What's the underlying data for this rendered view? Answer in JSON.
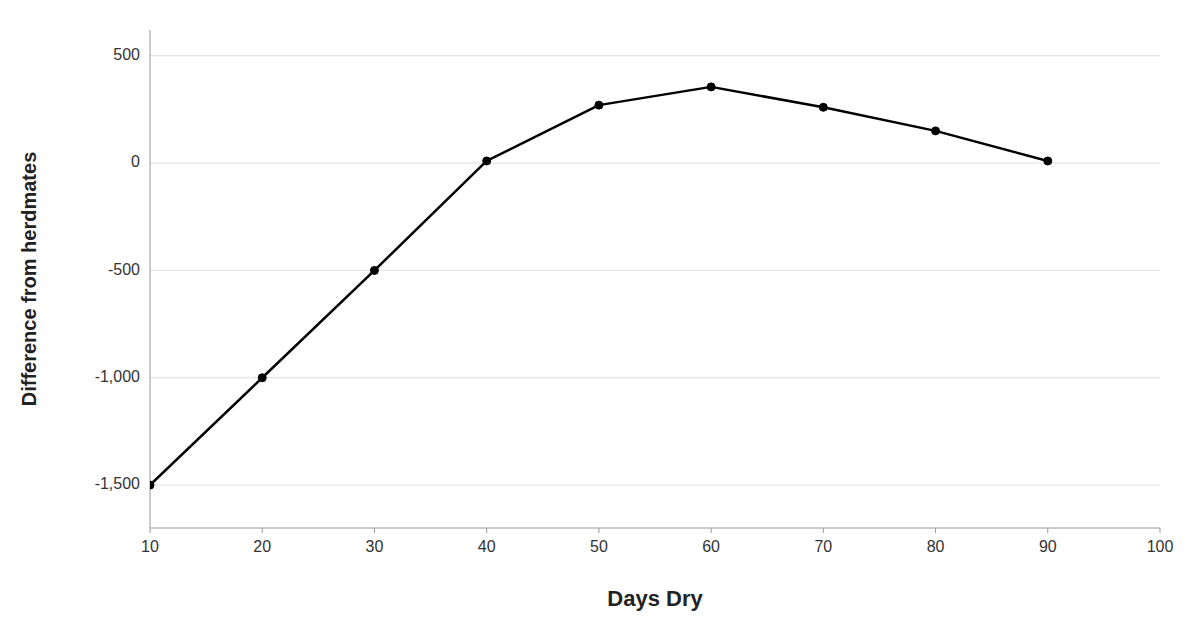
{
  "chart_data": {
    "type": "line",
    "x": [
      10,
      20,
      30,
      40,
      50,
      60,
      70,
      80,
      90
    ],
    "values": [
      -1500,
      -1000,
      -500,
      10,
      270,
      355,
      260,
      150,
      10
    ],
    "color": "#000000",
    "marker": "circle",
    "xlabel": "Days Dry",
    "ylabel": "Difference from herdmates",
    "xlim": [
      10,
      100
    ],
    "ylim": [
      -1700,
      620
    ],
    "xticks": [
      10,
      20,
      30,
      40,
      50,
      60,
      70,
      80,
      90,
      100
    ],
    "yticks": [
      {
        "value": -1500,
        "label": "-1,500"
      },
      {
        "value": -1000,
        "label": "-1,000"
      },
      -500,
      0,
      500
    ],
    "grid": true
  }
}
